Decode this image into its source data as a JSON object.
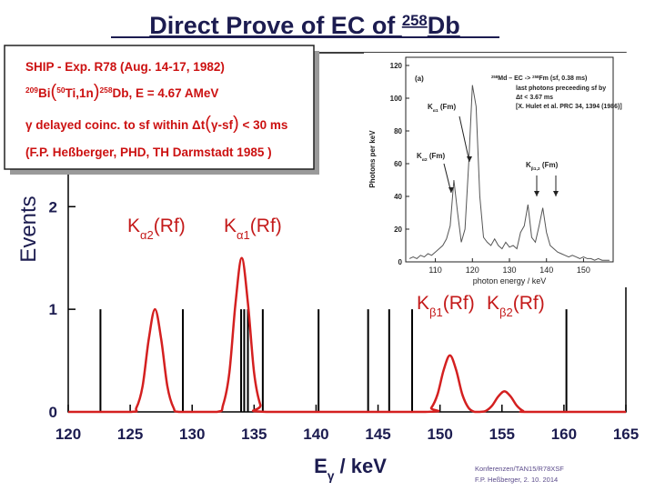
{
  "chart_data": [
    {
      "type": "line",
      "title": [
        {
          "text": "Direct Prove of EC of "
        },
        {
          "sup": "258"
        },
        {
          "text": "Db"
        }
      ],
      "ylabel": "Events",
      "xlabel": [
        {
          "text": "E"
        },
        {
          "sub": "γ"
        },
        {
          "text": " / keV"
        }
      ],
      "xlim": [
        120,
        165
      ],
      "xticks": [
        120,
        125,
        130,
        135,
        140,
        145,
        150,
        155,
        160,
        165
      ],
      "ylim": [
        0,
        3.5
      ],
      "yticks": [
        0,
        1,
        2
      ],
      "curve": {
        "color": "#d42020",
        "x": [
          120,
          125,
          125.5,
          126,
          126.5,
          127,
          127.5,
          128,
          128.5,
          129,
          132,
          132.5,
          133,
          133.5,
          134,
          134.5,
          135,
          135.5,
          136,
          148.8,
          149.3,
          149.8,
          150.3,
          150.8,
          151.3,
          151.8,
          152.3,
          152.8,
          153.2,
          153.7,
          154.2,
          154.7,
          155.2,
          155.7,
          156.2,
          156.7,
          157.2,
          165
        ],
        "values": [
          0,
          0,
          0.04,
          0.25,
          0.71,
          1.0,
          0.71,
          0.25,
          0.04,
          0,
          0,
          0.07,
          0.38,
          1.06,
          1.5,
          1.06,
          0.38,
          0.07,
          0,
          0,
          0.04,
          0.17,
          0.41,
          0.55,
          0.41,
          0.17,
          0.04,
          0,
          0,
          0.01,
          0.06,
          0.15,
          0.2,
          0.15,
          0.06,
          0.01,
          0,
          0
        ]
      },
      "events": {
        "color": "#000000",
        "x": [
          122.6,
          129.25,
          133.95,
          134.2,
          134.5,
          135.7,
          140.2,
          144.2,
          145.9,
          147.75,
          160.2
        ],
        "values": [
          1,
          1,
          1,
          1,
          1,
          1,
          1,
          1,
          1,
          1,
          1
        ]
      },
      "peak_labels": [
        [
          {
            "text": "K"
          },
          {
            "sub": "α2"
          },
          {
            "text": "(Rf)"
          }
        ],
        [
          {
            "text": "K"
          },
          {
            "sub": "α1"
          },
          {
            "text": "(Rf)"
          }
        ],
        [
          {
            "text": "K"
          },
          {
            "sub": "β1"
          },
          {
            "text": "(Rf)"
          }
        ],
        [
          {
            "text": "K"
          },
          {
            "sub": "β2"
          },
          {
            "text": "(Rf)"
          }
        ]
      ]
    },
    {
      "type": "line",
      "panel": "(a)",
      "ylabel": "Photons per keV",
      "xlabel": "photon energy / keV",
      "xlim": [
        102,
        158
      ],
      "xticks": [
        110,
        120,
        130,
        140,
        150
      ],
      "ylim": [
        0,
        125
      ],
      "yticks": [
        0,
        20,
        40,
        60,
        80,
        100,
        120
      ],
      "color": "#555555",
      "x": [
        103,
        104,
        105,
        106,
        107,
        108,
        109,
        110,
        111,
        112,
        113,
        114,
        115,
        116,
        117,
        118,
        119,
        120,
        121,
        122,
        123,
        124,
        125,
        126,
        127,
        128,
        129,
        130,
        131,
        132,
        133,
        134,
        135,
        136,
        137,
        138,
        139,
        140,
        141,
        142,
        143,
        144,
        145,
        146,
        147,
        148,
        149,
        150,
        151,
        152,
        153,
        154,
        155,
        156,
        157
      ],
      "values": [
        2,
        3,
        2,
        4,
        3,
        5,
        4,
        6,
        8,
        10,
        14,
        22,
        50,
        30,
        12,
        20,
        60,
        108,
        95,
        40,
        15,
        12,
        10,
        14,
        10,
        8,
        12,
        9,
        10,
        8,
        18,
        22,
        35,
        15,
        12,
        22,
        33,
        18,
        10,
        8,
        6,
        5,
        4,
        3,
        4,
        3,
        2,
        3,
        2,
        2,
        1,
        2,
        1,
        1,
        1
      ],
      "notes": [
        [
          {
            "sup": "258"
          },
          {
            "text": "Md – EC -> "
          },
          {
            "sup": "258"
          },
          {
            "text": "Fm (sf, 0.38 ms)"
          }
        ],
        [
          {
            "text": "last photons preceeding sf by"
          }
        ],
        [
          {
            "text": "Δt < 3.67 ms"
          }
        ],
        [
          {
            "text": "[X. Hulet et al. PRC 34, 1394 (1986)]"
          }
        ]
      ],
      "peak_labels": [
        [
          {
            "text": "K"
          },
          {
            "sub": "α1"
          },
          {
            "text": " (Fm)"
          }
        ],
        [
          {
            "text": "K"
          },
          {
            "sub": "α2"
          },
          {
            "text": " (Fm)"
          }
        ],
        [
          {
            "text": "K"
          },
          {
            "sub": "β1,2"
          },
          {
            "text": " (Fm)"
          }
        ]
      ]
    }
  ],
  "textbox": [
    [
      {
        "text": "SHIP - Exp. R78 (Aug. 14-17, 1982)"
      }
    ],
    [
      {
        "sup": "209"
      },
      {
        "text": "Bi"
      },
      {
        "big": "("
      },
      {
        "sup": "50"
      },
      {
        "text": "Ti,1n"
      },
      {
        "big": ")"
      },
      {
        "sup": "258"
      },
      {
        "text": "Db, E = 4.67 AMeV"
      }
    ],
    [
      {
        "text": "γ delayed coinc. to sf within Δt"
      },
      {
        "big": "("
      },
      {
        "text": "γ-sf"
      },
      {
        "big": ")"
      },
      {
        "text": " < 30 ms"
      }
    ],
    [
      {
        "text": "(F.P. Heßberger, PHD, TH Darmstadt 1985 )"
      }
    ]
  ],
  "footer": [
    "Konferenzen/TAN15/R78XSF",
    "F.P. Heßberger, 2. 10. 2014"
  ]
}
